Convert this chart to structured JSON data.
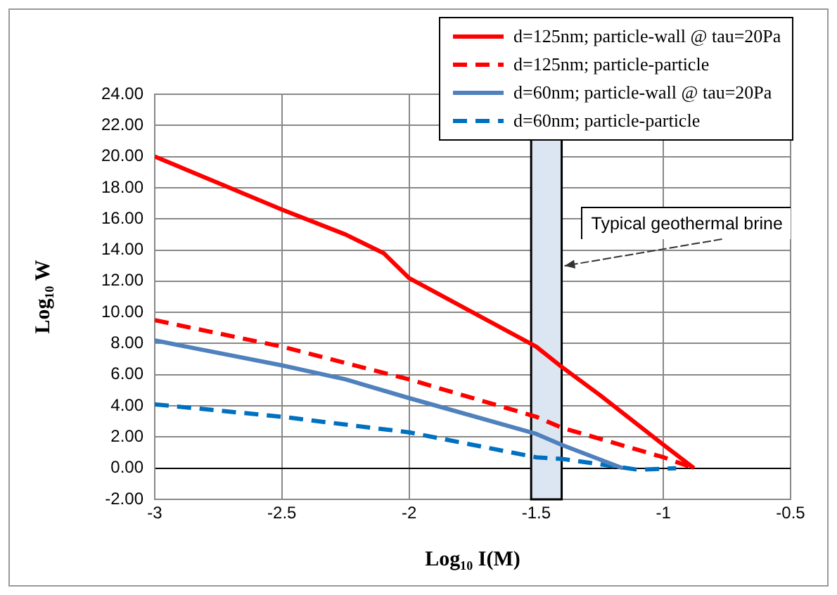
{
  "chart_data": {
    "type": "line",
    "xlabel": "Log₁₀ I(M)",
    "ylabel": "Log₁₀ W",
    "xlim": [
      -3,
      -0.5
    ],
    "xticks": [
      -3,
      -2.5,
      -2,
      -1.5,
      -1,
      -0.5
    ],
    "ylim": [
      -2,
      24
    ],
    "yticks": [
      {
        "value": -2,
        "label": "-2.00"
      },
      {
        "value": 0,
        "label": "0.00"
      },
      {
        "value": 2,
        "label": "2.00"
      },
      {
        "value": 4,
        "label": "4.00"
      },
      {
        "value": 6,
        "label": "6.00"
      },
      {
        "value": 8,
        "label": "8.00"
      },
      {
        "value": 10,
        "label": "10.00"
      },
      {
        "value": 12,
        "label": "12.00"
      },
      {
        "value": 14,
        "label": "14.00"
      },
      {
        "value": 16,
        "label": "16.00"
      },
      {
        "value": 18,
        "label": "18.00"
      },
      {
        "value": 20,
        "label": "20.00"
      },
      {
        "value": 22,
        "label": "22.00"
      },
      {
        "value": 24,
        "label": "24.00"
      }
    ],
    "grid": true,
    "legend": "top right",
    "marker": "none",
    "series": [
      {
        "name": "d=125nm; particle-wall @ tau=20Pa",
        "color": "#ff0000",
        "line_style": "solid",
        "x": [
          -3,
          -2.75,
          -2.5,
          -2.25,
          -2.1,
          -2,
          -1.75,
          -1.5,
          -1.4,
          -1.25,
          -1,
          -0.88
        ],
        "values": [
          20,
          18.3,
          16.6,
          15.0,
          13.8,
          12.2,
          10.0,
          7.8,
          6.5,
          4.7,
          1.5,
          0
        ]
      },
      {
        "name": "d=125nm; particle-particle",
        "color": "#ff0000",
        "line_style": "dashed",
        "x": [
          -3,
          -2.5,
          -2,
          -1.5,
          -1.4,
          -1,
          -0.88
        ],
        "values": [
          9.5,
          7.8,
          5.7,
          3.3,
          2.6,
          0.7,
          0
        ]
      },
      {
        "name": "d=60nm; particle-wall  @ tau=20Pa",
        "color": "#4f81bd",
        "line_style": "solid",
        "x": [
          -3,
          -2.5,
          -2.25,
          -2,
          -1.5,
          -1.4,
          -1.16
        ],
        "values": [
          8.2,
          6.6,
          5.7,
          4.5,
          2.2,
          1.5,
          0
        ]
      },
      {
        "name": "d=60nm; particle-particle",
        "color": "#0070c0",
        "line_style": "dashed",
        "x": [
          -3,
          -2.5,
          -2,
          -1.5,
          -1.4,
          -1.1,
          -0.95
        ],
        "values": [
          4.1,
          3.3,
          2.3,
          0.7,
          0.6,
          -0.1,
          0
        ]
      }
    ],
    "bands": [
      {
        "axis": "x",
        "from": -1.52,
        "to": -1.4,
        "label": "Typical geothermal brine",
        "color": "#dce6f2"
      }
    ]
  }
}
